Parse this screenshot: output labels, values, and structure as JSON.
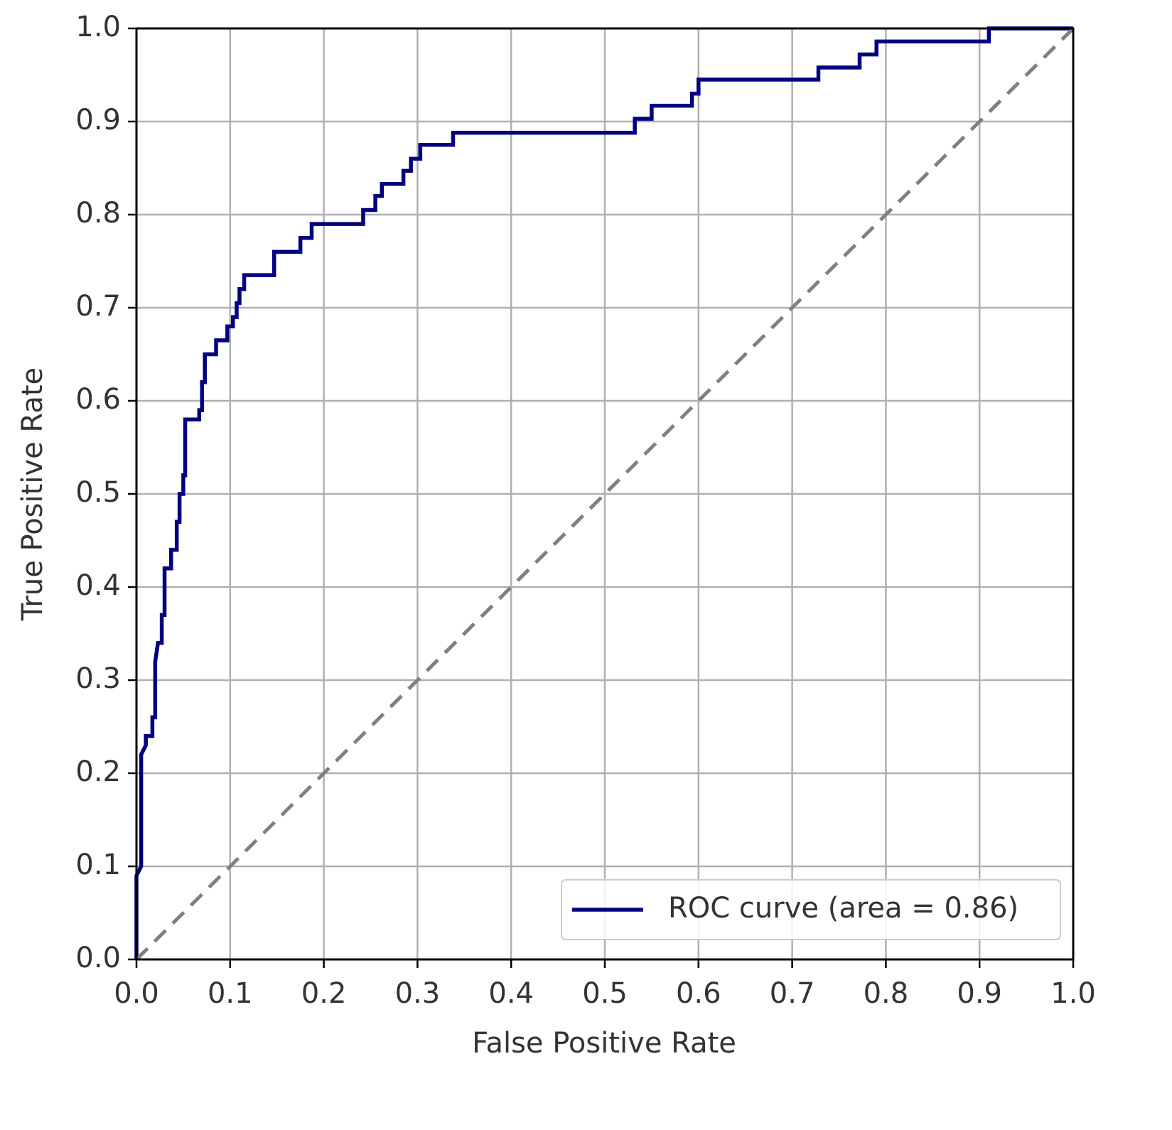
{
  "chart_data": {
    "type": "line",
    "xlabel": "False Positive Rate",
    "ylabel": "True Positive Rate",
    "xlim": [
      0,
      1
    ],
    "ylim": [
      0,
      1
    ],
    "xticks": [
      {
        "value": 0,
        "label": "0.0"
      },
      0.1,
      0.2,
      0.3,
      0.4,
      0.5,
      0.6,
      0.7,
      0.8,
      0.9,
      {
        "value": 1,
        "label": "1.0"
      }
    ],
    "yticks": [
      {
        "value": 0,
        "label": "0.0"
      },
      0.1,
      0.2,
      0.3,
      0.4,
      0.5,
      0.6,
      0.7,
      0.8,
      0.9,
      {
        "value": 1,
        "label": "1.0"
      }
    ],
    "grid": true,
    "legend": "lower right",
    "series": [
      {
        "name": "ROC curve (area = 0.86)",
        "color": "#000080",
        "dash": false,
        "x": [
          0,
          0,
          0.005,
          0.005,
          0.01,
          0.01,
          0.017,
          0.017,
          0.02,
          0.02,
          0.023,
          0.027,
          0.027,
          0.03,
          0.03,
          0.037,
          0.037,
          0.043,
          0.043,
          0.046,
          0.046,
          0.05,
          0.05,
          0.052,
          0.052,
          0.067,
          0.067,
          0.07,
          0.07,
          0.073,
          0.073,
          0.085,
          0.085,
          0.097,
          0.097,
          0.103,
          0.103,
          0.107,
          0.107,
          0.11,
          0.11,
          0.115,
          0.115,
          0.147,
          0.147,
          0.175,
          0.175,
          0.187,
          0.187,
          0.242,
          0.242,
          0.255,
          0.255,
          0.262,
          0.262,
          0.285,
          0.285,
          0.293,
          0.293,
          0.303,
          0.303,
          0.338,
          0.338,
          0.532,
          0.532,
          0.55,
          0.55,
          0.593,
          0.593,
          0.6,
          0.6,
          0.728,
          0.728,
          0.772,
          0.772,
          0.79,
          0.79,
          0.91,
          0.91,
          1
        ],
        "values": [
          0,
          0.09,
          0.1,
          0.22,
          0.23,
          0.24,
          0.24,
          0.26,
          0.26,
          0.32,
          0.34,
          0.34,
          0.37,
          0.37,
          0.42,
          0.42,
          0.44,
          0.44,
          0.47,
          0.47,
          0.5,
          0.5,
          0.52,
          0.52,
          0.58,
          0.58,
          0.59,
          0.59,
          0.62,
          0.62,
          0.65,
          0.65,
          0.665,
          0.665,
          0.68,
          0.68,
          0.69,
          0.69,
          0.705,
          0.705,
          0.72,
          0.72,
          0.735,
          0.735,
          0.76,
          0.76,
          0.775,
          0.775,
          0.79,
          0.79,
          0.805,
          0.805,
          0.82,
          0.82,
          0.833,
          0.833,
          0.847,
          0.847,
          0.86,
          0.86,
          0.875,
          0.875,
          0.888,
          0.888,
          0.903,
          0.903,
          0.917,
          0.917,
          0.93,
          0.93,
          0.945,
          0.945,
          0.958,
          0.958,
          0.972,
          0.972,
          0.986,
          0.986,
          1,
          1
        ]
      },
      {
        "color": "#808080",
        "dash": true,
        "x": [
          0,
          1
        ],
        "values": [
          0,
          1
        ]
      }
    ]
  }
}
